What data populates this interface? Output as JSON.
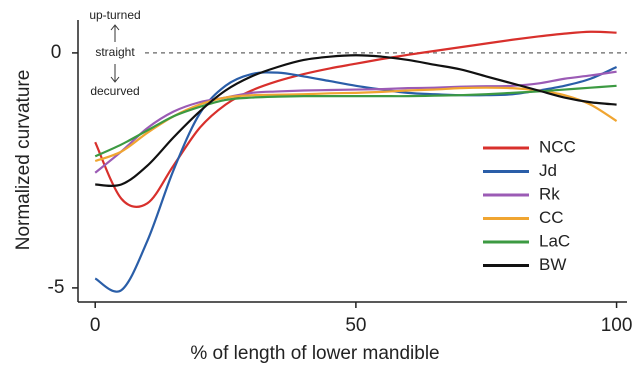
{
  "chart_data": {
    "type": "line",
    "xlabel": "% of length of lower mandible",
    "ylabel": "Normalized curvature",
    "annotations": [
      "up-turned",
      "straight",
      "decurved"
    ],
    "hline": 0,
    "x": [
      0,
      5,
      10,
      15,
      20,
      25,
      30,
      35,
      40,
      45,
      50,
      55,
      60,
      65,
      70,
      75,
      80,
      85,
      90,
      95,
      100
    ],
    "series": [
      {
        "name": "NCC",
        "color": "#d8302c",
        "values": [
          -1.9,
          -3.1,
          -3.2,
          -2.4,
          -1.6,
          -1.1,
          -0.8,
          -0.6,
          -0.45,
          -0.33,
          -0.23,
          -0.13,
          -0.04,
          0.04,
          0.12,
          0.2,
          0.28,
          0.35,
          0.41,
          0.45,
          0.43
        ]
      },
      {
        "name": "Jd",
        "color": "#2a5ea8",
        "values": [
          -4.8,
          -5.05,
          -4.0,
          -2.5,
          -1.3,
          -0.7,
          -0.45,
          -0.42,
          -0.5,
          -0.6,
          -0.7,
          -0.78,
          -0.85,
          -0.88,
          -0.9,
          -0.9,
          -0.88,
          -0.8,
          -0.7,
          -0.55,
          -0.3
        ]
      },
      {
        "name": "Rk",
        "color": "#9b5bb5",
        "values": [
          -2.55,
          -2.1,
          -1.6,
          -1.25,
          -1.05,
          -0.95,
          -0.85,
          -0.82,
          -0.8,
          -0.79,
          -0.78,
          -0.77,
          -0.75,
          -0.74,
          -0.72,
          -0.71,
          -0.7,
          -0.65,
          -0.55,
          -0.48,
          -0.4
        ]
      },
      {
        "name": "CC",
        "color": "#f0a531",
        "values": [
          -2.3,
          -2.1,
          -1.7,
          -1.35,
          -1.1,
          -0.95,
          -0.9,
          -0.89,
          -0.88,
          -0.86,
          -0.85,
          -0.83,
          -0.8,
          -0.78,
          -0.75,
          -0.74,
          -0.75,
          -0.8,
          -0.9,
          -1.1,
          -1.45
        ]
      },
      {
        "name": "LaC",
        "color": "#3c9a42",
        "values": [
          -2.2,
          -1.95,
          -1.65,
          -1.35,
          -1.15,
          -1.0,
          -0.95,
          -0.93,
          -0.92,
          -0.92,
          -0.92,
          -0.92,
          -0.92,
          -0.91,
          -0.9,
          -0.88,
          -0.85,
          -0.82,
          -0.78,
          -0.74,
          -0.7
        ]
      },
      {
        "name": "BW",
        "color": "#111111",
        "values": [
          -2.8,
          -2.8,
          -2.4,
          -1.8,
          -1.25,
          -0.8,
          -0.5,
          -0.3,
          -0.15,
          -0.08,
          -0.05,
          -0.08,
          -0.15,
          -0.25,
          -0.35,
          -0.5,
          -0.65,
          -0.8,
          -0.95,
          -1.05,
          -1.1
        ]
      }
    ],
    "xlim": [
      -3.3,
      102
    ],
    "ylim": [
      -5.3,
      0.7
    ],
    "xticks": [
      0,
      50,
      100
    ],
    "yticks": [
      0,
      -5
    ],
    "legend": "lower right"
  }
}
